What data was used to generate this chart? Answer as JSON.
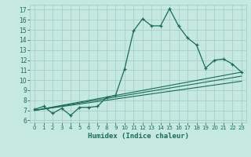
{
  "xlabel": "Humidex (Indice chaleur)",
  "ylabel": "",
  "bg_color": "#c5e8e0",
  "grid_color": "#a8cfc8",
  "line_color": "#1a6b5a",
  "xlim": [
    -0.5,
    23.5
  ],
  "ylim": [
    5.8,
    17.5
  ],
  "xticks": [
    0,
    1,
    2,
    3,
    4,
    5,
    6,
    7,
    8,
    9,
    10,
    11,
    12,
    13,
    14,
    15,
    16,
    17,
    18,
    19,
    20,
    21,
    22,
    23
  ],
  "yticks": [
    6,
    7,
    8,
    9,
    10,
    11,
    12,
    13,
    14,
    15,
    16,
    17
  ],
  "line1_x": [
    0,
    1,
    2,
    3,
    4,
    5,
    6,
    7,
    8,
    9,
    10,
    11,
    12,
    13,
    14,
    15,
    16,
    17,
    18,
    19,
    20,
    21,
    22,
    23
  ],
  "line1_y": [
    7.1,
    7.4,
    6.7,
    7.2,
    6.5,
    7.3,
    7.3,
    7.4,
    8.3,
    8.5,
    11.1,
    14.9,
    16.1,
    15.4,
    15.4,
    17.1,
    15.4,
    14.2,
    13.5,
    11.2,
    12.0,
    12.1,
    11.6,
    10.8
  ],
  "line2_x": [
    0,
    23
  ],
  "line2_y": [
    7.0,
    10.8
  ],
  "line3_x": [
    0,
    23
  ],
  "line3_y": [
    7.0,
    10.4
  ],
  "line4_x": [
    0,
    23
  ],
  "line4_y": [
    7.0,
    9.9
  ]
}
